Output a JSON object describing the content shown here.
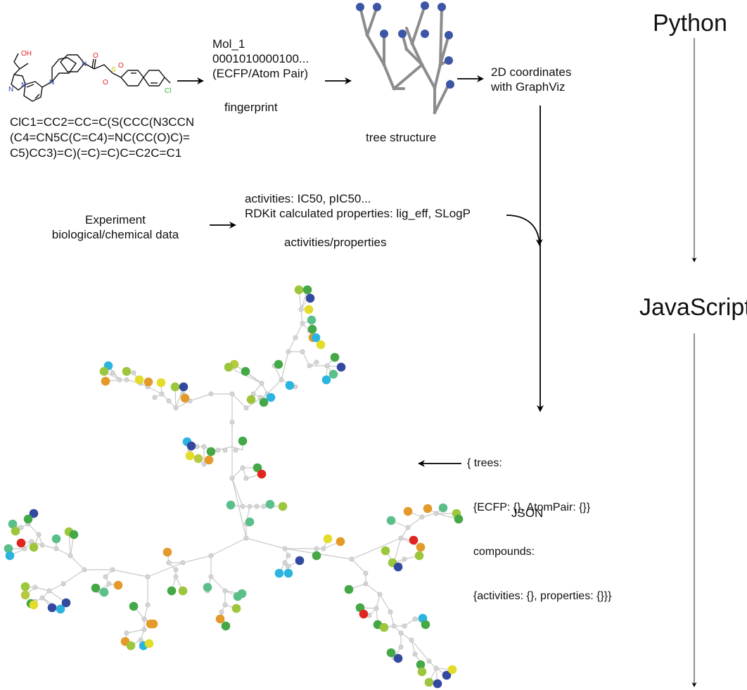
{
  "languages": {
    "top": "Python",
    "bottom": "JavaScript"
  },
  "molecule": {
    "smiles_lines": [
      "ClC1=CC2=CC=C(S(CCC(N3CCN",
      "(C4=CN5C(C=C4)=NC(CC(O)C)=",
      "C5)CC3)=C)(=C)=C)C=C2C=C1"
    ],
    "atom_labels": {
      "oh": "OH",
      "n1": "N",
      "n2": "N",
      "n3": "N",
      "n4": "N",
      "o1": "O",
      "s": "S",
      "o2": "O",
      "o3": "O",
      "cl": "Cl"
    }
  },
  "fingerprint": {
    "lines": [
      "Mol_1",
      "0001010000100...",
      "(ECFP/Atom Pair)"
    ],
    "caption": "fingerprint"
  },
  "tree_structure": {
    "caption": "tree structure"
  },
  "graphviz": {
    "lines": [
      "2D coordinates",
      "with GraphViz"
    ]
  },
  "experiment": {
    "lines": [
      "Experiment",
      "biological/chemical data"
    ]
  },
  "activities": {
    "lines": [
      "activities: IC50, pIC50...",
      "RDKit calculated properties: lig_eff, SLogP"
    ],
    "caption": "activities/properties"
  },
  "json_box": {
    "lines": [
      "{ trees:",
      "  {ECFP: {}, AtomPair: {}}",
      "  compounds:",
      "  {activities: {}, properties: {}}}"
    ],
    "caption": "JSON"
  },
  "colors": {
    "tree_node": "#3d55a6",
    "tree_edge": "#8c8c8c",
    "graph_edge": "#c8c8c8",
    "graph_inner": "#d4d4d4",
    "oxygen": "#e02020",
    "nitrogen": "#2b3fb0",
    "sulfur": "#c8c400",
    "chlorine": "#2fb52f"
  }
}
